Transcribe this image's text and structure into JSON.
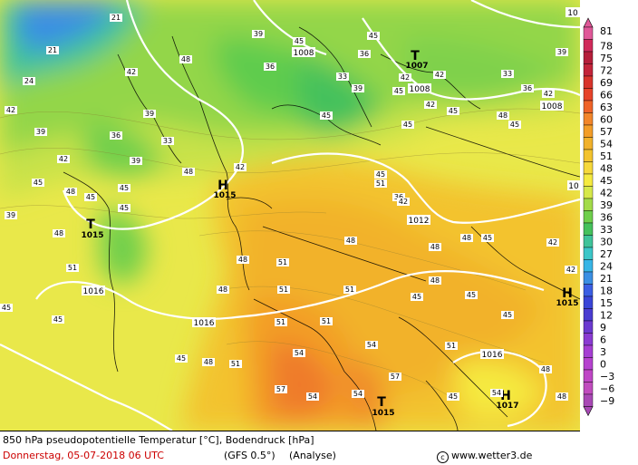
{
  "footer": {
    "title": "850 hPa pseudopotentielle Temperatur [°C], Bodendruck [hPa]",
    "date": "Donnerstag, 05-07-2018  06 UTC",
    "model": "(GFS 0.5°)",
    "analysis": "(Analyse)",
    "credit": "www.wetter3.de"
  },
  "colors": {
    "scale": {
      "81": "#e05898",
      "78": "#d02a5a",
      "75": "#b51e3a",
      "72": "#c3243a",
      "69": "#d8342c",
      "66": "#e6432a",
      "63": "#ef6328",
      "60": "#f2862a",
      "57": "#f39d28",
      "54": "#f1b12b",
      "51": "#f3c32e",
      "48": "#f6d83a",
      "45": "#f5ea40",
      "42": "#d6e84a",
      "39": "#a3db49",
      "36": "#6fcf4c",
      "33": "#45c15c",
      "30": "#3fc39a",
      "27": "#3bc6c8",
      "24": "#38b5e6",
      "21": "#3b8fe3",
      "18": "#3b5ee3",
      "15": "#3a45d7",
      "12": "#4a3cd1",
      "9": "#6b3ad0",
      "6": "#8a3bd2",
      "3": "#a53ed3",
      "0": "#b542cf",
      "-3": "#bf46c6",
      "-6": "#c04cbe",
      "-9": "#a848b5"
    }
  },
  "colorbar": {
    "labels": [
      "81",
      "78",
      "75",
      "72",
      "69",
      "66",
      "63",
      "60",
      "57",
      "54",
      "51",
      "48",
      "45",
      "42",
      "39",
      "36",
      "33",
      "30",
      "27",
      "24",
      "21",
      "18",
      "15",
      "12",
      "9",
      "6",
      "3",
      "0",
      "−3",
      "−6",
      "−9"
    ]
  },
  "map": {
    "pressure_centers": [
      {
        "symbol": "T",
        "value": "1007"
      },
      {
        "symbol": "H",
        "value": "1015"
      },
      {
        "symbol": "T",
        "value": "1015"
      },
      {
        "symbol": "H",
        "value": "1015"
      },
      {
        "symbol": "T",
        "value": "1015"
      },
      {
        "symbol": "H",
        "value": "1017"
      }
    ],
    "isobar_labels": [
      "1008",
      "1008",
      "1008",
      "1012",
      "1016",
      "1016",
      "1016",
      "10",
      "10"
    ],
    "temp_labels": [
      "21",
      "21",
      "24",
      "42",
      "39",
      "42",
      "48",
      "36",
      "39",
      "45",
      "36",
      "45",
      "33",
      "39",
      "42",
      "45",
      "42",
      "45",
      "48",
      "45",
      "42",
      "45",
      "39",
      "33",
      "36",
      "39",
      "42",
      "45",
      "48",
      "51",
      "45",
      "51",
      "48",
      "45",
      "45",
      "48",
      "42",
      "36",
      "33",
      "36",
      "39",
      "42",
      "45",
      "45",
      "42",
      "39",
      "45",
      "48",
      "51",
      "51",
      "48",
      "48",
      "51",
      "51",
      "48",
      "54",
      "51",
      "54",
      "57",
      "54",
      "54",
      "57",
      "51",
      "48",
      "48",
      "54",
      "45",
      "45",
      "48",
      "45",
      "42",
      "45",
      "48",
      "51",
      "45",
      "48",
      "45",
      "45",
      "42"
    ]
  }
}
